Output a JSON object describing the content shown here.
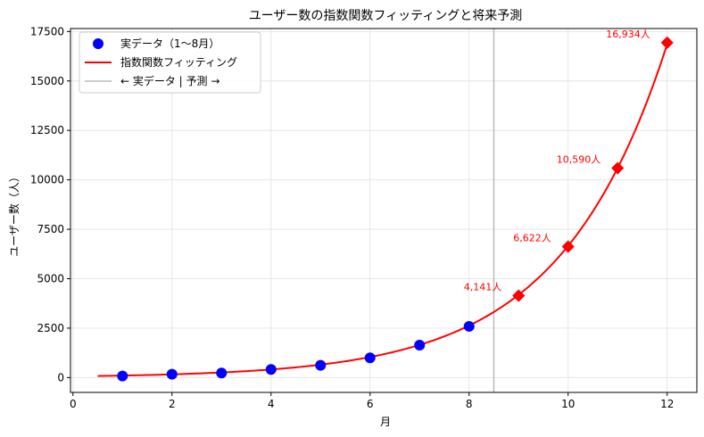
{
  "chart_data": {
    "type": "line",
    "title": "ユーザー数の指数関数フィッティングと将来予測",
    "xlabel": "月",
    "ylabel": "ユーザー数（人）",
    "xlim": [
      -0.05,
      12.6
    ],
    "ylim": [
      -750,
      17650
    ],
    "xticks": [
      0,
      2,
      4,
      6,
      8,
      10,
      12
    ],
    "yticks": [
      0,
      2500,
      5000,
      7500,
      10000,
      12500,
      15000,
      17500
    ],
    "grid": true,
    "legend_position": "top-left",
    "colors": {
      "actual": "#0000ff",
      "fit": "#ff0000",
      "divider": "#bbbbbb"
    },
    "legend": {
      "actual": "実データ（1〜8月）",
      "fit": "指数関数フィッティング",
      "divider": "← 実データ | 予測 →"
    },
    "divider_x": 8.5,
    "actual": {
      "x": [
        1,
        2,
        3,
        4,
        5,
        6,
        7,
        8
      ],
      "y": [
        80,
        170,
        230,
        410,
        620,
        1000,
        1640,
        2590
      ]
    },
    "fit_curve": {
      "x_range": [
        0.5,
        12
      ],
      "model": "a*exp(b*x)",
      "a": 64.0,
      "b": 0.4645
    },
    "forecast": {
      "x": [
        9,
        10,
        11,
        12
      ],
      "y": [
        4141,
        6622,
        10590,
        16934
      ],
      "labels": [
        "4,141人",
        "6,622人",
        "10,590人",
        "16,934人"
      ]
    }
  }
}
